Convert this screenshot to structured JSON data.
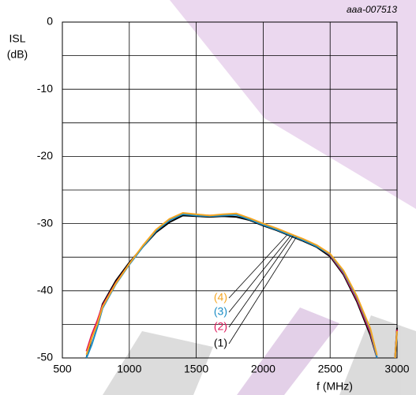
{
  "chart_data": {
    "type": "line",
    "annotation": "aaa-007513",
    "y_label_lines": [
      "ISL",
      "(dB)"
    ],
    "x_label": "f (MHz)",
    "x": [
      680,
      720,
      760,
      800,
      900,
      1000,
      1100,
      1200,
      1300,
      1400,
      1500,
      1600,
      1700,
      1800,
      1900,
      2000,
      2100,
      2200,
      2300,
      2400,
      2500,
      2600,
      2700,
      2800,
      2850,
      2920,
      2985,
      3000
    ],
    "series": [
      {
        "name": "(1)",
        "color": "#000000",
        "values": [
          -50,
          -47,
          -44.8,
          -42,
          -38.5,
          -35.8,
          -33.5,
          -31.3,
          -29.8,
          -28.8,
          -28.9,
          -29.0,
          -28.9,
          -29.0,
          -29.5,
          -30.3,
          -31.0,
          -31.8,
          -32.6,
          -33.5,
          -34.9,
          -37.6,
          -41.6,
          -46.6,
          -50,
          null,
          -50,
          -45.5
        ]
      },
      {
        "name": "(2)",
        "color": "#e0165a",
        "values": [
          -49,
          -46.5,
          -44.5,
          -42.2,
          -38.8,
          -36.0,
          -33.4,
          -31.0,
          -29.4,
          -28.5,
          -28.7,
          -28.8,
          -28.7,
          -28.6,
          -29.3,
          -30.1,
          -30.8,
          -31.6,
          -32.4,
          -33.3,
          -34.7,
          -37.4,
          -41.3,
          -46.2,
          -50,
          null,
          -50,
          -45.8
        ]
      },
      {
        "name": "(3)",
        "color": "#1a8cc4",
        "values": [
          -50,
          -48,
          -45.5,
          -42.6,
          -39.0,
          -36.1,
          -33.5,
          -31.1,
          -29.5,
          -28.6,
          -28.8,
          -28.9,
          -28.8,
          -28.7,
          -29.4,
          -30.2,
          -30.9,
          -31.7,
          -32.5,
          -33.4,
          -34.6,
          -37.2,
          -41.0,
          -45.8,
          -50,
          null,
          -50,
          -46.2
        ]
      },
      {
        "name": "(4)",
        "color": "#f5a623",
        "values": [
          -49.5,
          -47,
          -45,
          -42.4,
          -38.9,
          -36.0,
          -33.3,
          -30.9,
          -29.3,
          -28.4,
          -28.6,
          -28.8,
          -28.6,
          -28.5,
          -29.2,
          -30.0,
          -30.7,
          -31.5,
          -32.3,
          -33.2,
          -34.5,
          -37.0,
          -40.8,
          -45.6,
          -49.6,
          null,
          -50,
          -46
        ]
      }
    ],
    "xlim": [
      500,
      3000
    ],
    "xticks": [
      500,
      1000,
      1500,
      2000,
      2500,
      3000
    ],
    "ylim": [
      -50,
      0
    ],
    "yticks": [
      0,
      -10,
      -20,
      -30,
      -40,
      -50
    ],
    "yminor": [
      -5,
      -15,
      -25,
      -35,
      -45
    ],
    "grid": true
  }
}
